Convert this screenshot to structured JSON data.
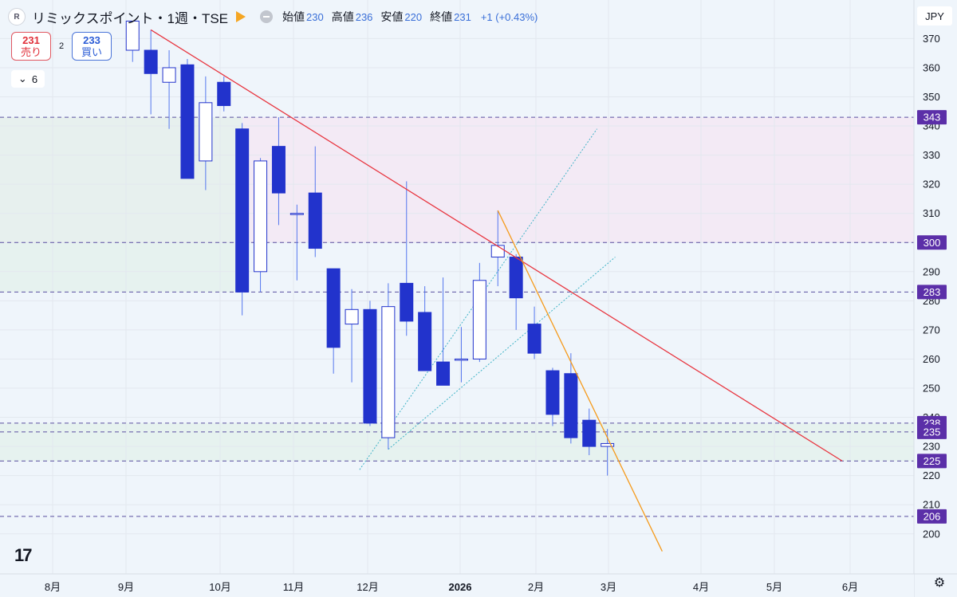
{
  "header": {
    "title": "リミックスポイント・1週・TSE",
    "open_label": "始値",
    "open": "230",
    "high_label": "高値",
    "high": "236",
    "low_label": "安値",
    "low": "220",
    "close_label": "終値",
    "close": "231",
    "change": "+1 (+0.43%)"
  },
  "trade": {
    "sell_price": "231",
    "sell_label": "売り",
    "spread": "2",
    "buy_price": "233",
    "buy_label": "買い"
  },
  "collapse_label": "6",
  "currency": "JPY",
  "icons": {
    "logo": "tradingview-logo-icon",
    "settings": "gear-icon",
    "flag": "flag-icon"
  },
  "colors": {
    "bearish": "#2233cc",
    "bullish": "#ffffff",
    "wick": "#5577ee",
    "trendline_red": "#e8353f",
    "trendline_orange": "#f59a1b",
    "channel": "#3fb3c6",
    "level_line": "#5a4fa0",
    "level_tag": "#5b2fa8",
    "zone_pink": "#f3e8f3",
    "zone_green": "#e4f1ec"
  },
  "chart_data": {
    "type": "candlestick",
    "x_ticks": [
      "8月",
      "9月",
      "10月",
      "11月",
      "12月",
      "2026",
      "2月",
      "3月",
      "4月",
      "5月",
      "6月"
    ],
    "y_ticks": [
      200,
      210,
      220,
      230,
      240,
      250,
      260,
      270,
      280,
      290,
      300,
      310,
      320,
      330,
      340,
      350,
      360,
      370
    ],
    "ylim": [
      193,
      377
    ],
    "candles": [
      {
        "date": "2025-08-26",
        "open": 366,
        "high": 376,
        "low": 362,
        "close": 376
      },
      {
        "date": "2025-09-02",
        "open": 366,
        "high": 373,
        "low": 344,
        "close": 358
      },
      {
        "date": "2025-09-09",
        "open": 355,
        "high": 366,
        "low": 339,
        "close": 360
      },
      {
        "date": "2025-09-16",
        "open": 361,
        "high": 363,
        "low": 322,
        "close": 322
      },
      {
        "date": "2025-09-23",
        "open": 328,
        "high": 357,
        "low": 318,
        "close": 348
      },
      {
        "date": "2025-09-30",
        "open": 355,
        "high": 357,
        "low": 345,
        "close": 347
      },
      {
        "date": "2025-10-07",
        "open": 339,
        "high": 341,
        "low": 275,
        "close": 283
      },
      {
        "date": "2025-10-14",
        "open": 290,
        "high": 329,
        "low": 283,
        "close": 328
      },
      {
        "date": "2025-10-21",
        "open": 333,
        "high": 343,
        "low": 306,
        "close": 317
      },
      {
        "date": "2025-10-28",
        "open": 310,
        "high": 313,
        "low": 287,
        "close": 310
      },
      {
        "date": "2025-11-04",
        "open": 317,
        "high": 333,
        "low": 295,
        "close": 298
      },
      {
        "date": "2025-11-11",
        "open": 291,
        "high": 291,
        "low": 255,
        "close": 264
      },
      {
        "date": "2025-11-18",
        "open": 272,
        "high": 284,
        "low": 252,
        "close": 277
      },
      {
        "date": "2025-11-25",
        "open": 277,
        "high": 280,
        "low": 237,
        "close": 238
      },
      {
        "date": "2025-12-02",
        "open": 233,
        "high": 286,
        "low": 229,
        "close": 278
      },
      {
        "date": "2025-12-09",
        "open": 286,
        "high": 321,
        "low": 268,
        "close": 273
      },
      {
        "date": "2025-12-16",
        "open": 276,
        "high": 285,
        "low": 256,
        "close": 256
      },
      {
        "date": "2025-12-23",
        "open": 259,
        "high": 288,
        "low": 251,
        "close": 251
      },
      {
        "date": "2025-12-30",
        "open": 260,
        "high": 271,
        "low": 252,
        "close": 260
      },
      {
        "date": "2026-01-06",
        "open": 260,
        "high": 293,
        "low": 259,
        "close": 287
      },
      {
        "date": "2026-01-13",
        "open": 295,
        "high": 311,
        "low": 285,
        "close": 299
      },
      {
        "date": "2026-01-20",
        "open": 295,
        "high": 296,
        "low": 270,
        "close": 281
      },
      {
        "date": "2026-01-27",
        "open": 272,
        "high": 278,
        "low": 260,
        "close": 262
      },
      {
        "date": "2026-02-03",
        "open": 256,
        "high": 257,
        "low": 237,
        "close": 241
      },
      {
        "date": "2026-02-10",
        "open": 255,
        "high": 262,
        "low": 231,
        "close": 233
      },
      {
        "date": "2026-02-17",
        "open": 239,
        "high": 243,
        "low": 227,
        "close": 230
      },
      {
        "date": "2026-02-24",
        "open": 230,
        "high": 236,
        "low": 220,
        "close": 231
      }
    ],
    "levels": [
      343,
      300,
      283,
      238,
      235,
      225,
      206
    ],
    "zones": [
      {
        "from": 300,
        "to": 343,
        "color": "pink"
      },
      {
        "from": 225,
        "to": 238,
        "color": "green"
      },
      {
        "from": 283,
        "to": 343,
        "color": "green",
        "until": "2025-10-07"
      }
    ],
    "trendlines": [
      {
        "color": "red",
        "from": {
          "date": "2025-09-02",
          "value": 373
        },
        "to": {
          "date": "2026-05-25",
          "value": 225
        }
      },
      {
        "color": "orange",
        "from": {
          "date": "2026-01-13",
          "value": 311
        },
        "to": {
          "date": "2026-03-17",
          "value": 194
        }
      }
    ],
    "channel": [
      {
        "from": {
          "date": "2025-11-21",
          "value": 222
        },
        "to": {
          "date": "2026-02-20",
          "value": 339
        }
      },
      {
        "from": {
          "date": "2025-12-02",
          "value": 229
        },
        "to": {
          "date": "2026-02-27",
          "value": 295
        }
      }
    ]
  }
}
